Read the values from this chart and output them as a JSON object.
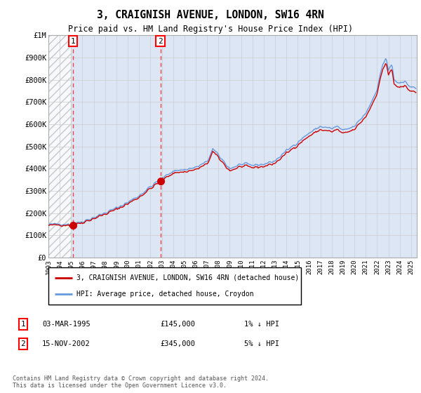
{
  "title": "3, CRAIGNISH AVENUE, LONDON, SW16 4RN",
  "subtitle": "Price paid vs. HM Land Registry's House Price Index (HPI)",
  "xlim_start": 1993.0,
  "xlim_end": 2025.5,
  "ylim": [
    0,
    1000000
  ],
  "yticks": [
    0,
    100000,
    200000,
    300000,
    400000,
    500000,
    600000,
    700000,
    800000,
    900000,
    1000000
  ],
  "ytick_labels": [
    "£0",
    "£100K",
    "£200K",
    "£300K",
    "£400K",
    "£500K",
    "£600K",
    "£700K",
    "£800K",
    "£900K",
    "£1M"
  ],
  "xticks": [
    1993,
    1994,
    1995,
    1996,
    1997,
    1998,
    1999,
    2000,
    2001,
    2002,
    2003,
    2004,
    2005,
    2006,
    2007,
    2008,
    2009,
    2010,
    2011,
    2012,
    2013,
    2014,
    2015,
    2016,
    2017,
    2018,
    2019,
    2020,
    2021,
    2022,
    2023,
    2024,
    2025
  ],
  "sale1_x": 1995.17,
  "sale1_y": 145000,
  "sale2_x": 2002.88,
  "sale2_y": 345000,
  "legend_line1": "3, CRAIGNISH AVENUE, LONDON, SW16 4RN (detached house)",
  "legend_line2": "HPI: Average price, detached house, Croydon",
  "plot_bg": "#dce6f5",
  "hatch_color": "#bbbbbb",
  "grid_color": "#cccccc",
  "hpi_color": "#6699dd",
  "price_color": "#cc0000",
  "vline_color": "#ee4444",
  "footer": "Contains HM Land Registry data © Crown copyright and database right 2024.\nThis data is licensed under the Open Government Licence v3.0."
}
